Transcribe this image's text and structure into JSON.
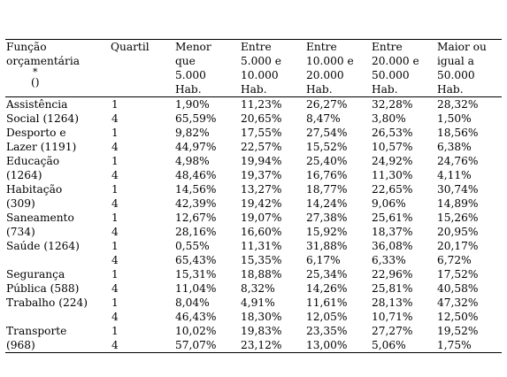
{
  "table": {
    "headers": {
      "funcao": [
        "Função",
        "orçamentária"
      ],
      "funcao_asterisk": "*",
      "funcao_paren": "()",
      "quartil": [
        "Quartil"
      ],
      "col1": [
        "Menor",
        "que",
        "5.000",
        "Hab."
      ],
      "col2": [
        "Entre",
        "5.000 e",
        "10.000",
        "Hab."
      ],
      "col3": [
        "Entre",
        "10.000 e",
        "20.000",
        "Hab."
      ],
      "col4": [
        "Entre",
        "20.000 e",
        "50.000",
        "Hab."
      ],
      "col5": [
        "Maior ou",
        "igual a",
        "50.000",
        "Hab."
      ]
    },
    "rows": [
      {
        "label": "Assistência",
        "quartil": "1",
        "v": [
          "1,90%",
          "11,23%",
          "26,27%",
          "32,28%",
          "28,32%"
        ]
      },
      {
        "label": "Social (1264)",
        "quartil": "4",
        "v": [
          "65,59%",
          "20,65%",
          "8,47%",
          "3,80%",
          "1,50%"
        ]
      },
      {
        "label": "Desporto e",
        "quartil": "1",
        "v": [
          "9,82%",
          "17,55%",
          "27,54%",
          "26,53%",
          "18,56%"
        ]
      },
      {
        "label": "Lazer (1191)",
        "quartil": "4",
        "v": [
          "44,97%",
          "22,57%",
          "15,52%",
          "10,57%",
          "6,38%"
        ]
      },
      {
        "label": "Educação",
        "quartil": "1",
        "v": [
          "4,98%",
          "19,94%",
          "25,40%",
          "24,92%",
          "24,76%"
        ]
      },
      {
        "label": "(1264)",
        "quartil": "4",
        "v": [
          "48,46%",
          "19,37%",
          "16,76%",
          "11,30%",
          "4,11%"
        ]
      },
      {
        "label": "Habitação",
        "quartil": "1",
        "v": [
          "14,56%",
          "13,27%",
          "18,77%",
          "22,65%",
          "30,74%"
        ]
      },
      {
        "label": "(309)",
        "quartil": "4",
        "v": [
          "42,39%",
          "19,42%",
          "14,24%",
          "9,06%",
          "14,89%"
        ]
      },
      {
        "label": "Saneamento",
        "quartil": "1",
        "v": [
          "12,67%",
          "19,07%",
          "27,38%",
          "25,61%",
          "15,26%"
        ]
      },
      {
        "label": "(734)",
        "quartil": "4",
        "v": [
          "28,16%",
          "16,60%",
          "15,92%",
          "18,37%",
          "20,95%"
        ]
      },
      {
        "label": "Saúde (1264)",
        "quartil": "1",
        "v": [
          "0,55%",
          "11,31%",
          "31,88%",
          "36,08%",
          "20,17%"
        ]
      },
      {
        "label": "",
        "quartil": "4",
        "v": [
          "65,43%",
          "15,35%",
          "6,17%",
          "6,33%",
          "6,72%"
        ]
      },
      {
        "label": "Segurança",
        "quartil": "1",
        "v": [
          "15,31%",
          "18,88%",
          "25,34%",
          "22,96%",
          "17,52%"
        ]
      },
      {
        "label": "Pública (588)",
        "quartil": "4",
        "v": [
          "11,04%",
          "8,32%",
          "14,26%",
          "25,81%",
          "40,58%"
        ]
      },
      {
        "label": "Trabalho (224)",
        "quartil": "1",
        "v": [
          "8,04%",
          "4,91%",
          "11,61%",
          "28,13%",
          "47,32%"
        ]
      },
      {
        "label": "",
        "quartil": "4",
        "v": [
          "46,43%",
          "18,30%",
          "12,05%",
          "10,71%",
          "12,50%"
        ]
      },
      {
        "label": "Transporte",
        "quartil": "1",
        "v": [
          "10,02%",
          "19,83%",
          "23,35%",
          "27,27%",
          "19,52%"
        ]
      },
      {
        "label": "(968)",
        "quartil": "4",
        "v": [
          "57,07%",
          "23,12%",
          "13,00%",
          "5,06%",
          "1,75%"
        ]
      }
    ]
  }
}
